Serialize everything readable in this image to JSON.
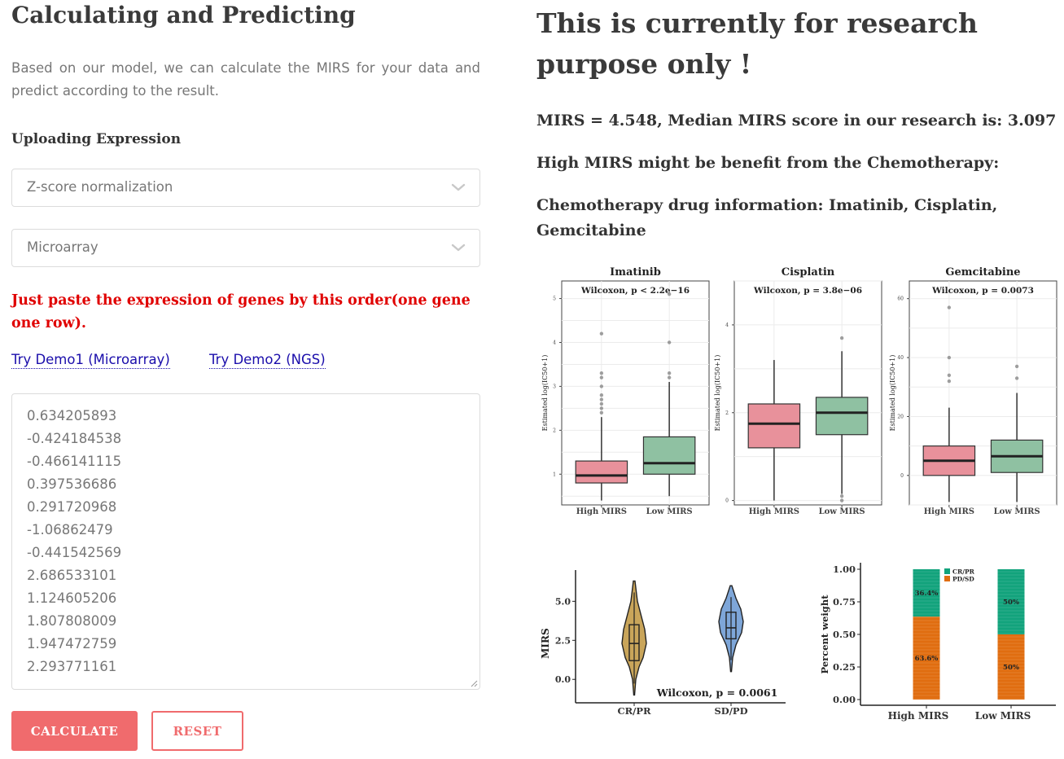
{
  "left": {
    "title": "Calculating and Predicting",
    "intro": "Based on our model, we can calculate the MIRS for your data and predict according to the result.",
    "upload_heading": "Uploading Expression",
    "normalization_select": "Z-score normalization",
    "platform_select": "Microarray",
    "instruction": "Just paste the expression of genes by this order(one gene one row).",
    "demo1_label": "Try Demo1 (Microarray)",
    "demo2_label": "Try Demo2 (NGS)",
    "expression_values": [
      "0.634205893",
      "-0.424184538",
      "-0.466141115",
      "0.397536686",
      "0.291720968",
      "-1.06862479",
      "-0.441542569",
      "2.686533101",
      "1.124605206",
      "1.807808009",
      "1.947472759",
      "2.293771161"
    ],
    "calculate_label": "CALCULATE",
    "reset_label": "RESET"
  },
  "right": {
    "research_note": "This is currently for research purpose only !",
    "mirs_result": "MIRS = 4.548, Median MIRS score in our research is: 3.097",
    "benefit": "High MIRS might be benefit from the Chemotherapy:",
    "drug_info": "Chemotherapy drug information: Imatinib, Cisplatin, Gemcitabine"
  },
  "colors": {
    "accent": "#f06b6d",
    "high_box": "#e8919b",
    "low_box": "#8fc1a2",
    "violin_cr": "#c9a55a",
    "violin_sd": "#7ea6d8",
    "crpr": "#12a37c",
    "pdsd": "#e06d10",
    "link": "#1a0dab",
    "instruction": "#e00000"
  },
  "chart_data": [
    {
      "type": "box",
      "title": "Imatinib",
      "annotation": "Wilcoxon, p < 2.2e−16",
      "ylabel": "Estimated log(IC50+1)",
      "categories": [
        "High MIRS",
        "Low MIRS"
      ],
      "y_ticks": [
        "1",
        "2",
        "3",
        "4",
        "5"
      ],
      "ylim": [
        0.3,
        5.4
      ],
      "boxes": [
        {
          "name": "High MIRS",
          "min": 0.4,
          "q1": 0.8,
          "median": 0.97,
          "q3": 1.3,
          "max": 2.3,
          "outliers": [
            2.4,
            2.5,
            2.6,
            2.7,
            2.8,
            3.0,
            3.2,
            3.3,
            4.2
          ]
        },
        {
          "name": "Low MIRS",
          "min": 0.5,
          "q1": 1.0,
          "median": 1.25,
          "q3": 1.85,
          "max": 3.1,
          "outliers": [
            3.2,
            3.3,
            4.0,
            5.1
          ]
        }
      ]
    },
    {
      "type": "box",
      "title": "Cisplatin",
      "annotation": "Wilcoxon, p = 3.8e−06",
      "ylabel": "Estimated log(IC50+1)",
      "categories": [
        "High MIRS",
        "Low MIRS"
      ],
      "y_ticks": [
        "0",
        "2",
        "4"
      ],
      "ylim": [
        -0.1,
        5.0
      ],
      "boxes": [
        {
          "name": "High MIRS",
          "min": 0.0,
          "q1": 1.2,
          "median": 1.75,
          "q3": 2.2,
          "max": 3.2,
          "outliers": []
        },
        {
          "name": "Low MIRS",
          "min": 0.15,
          "q1": 1.5,
          "median": 2.0,
          "q3": 2.35,
          "max": 3.4,
          "outliers": [
            0.0,
            0.1,
            3.7
          ]
        }
      ]
    },
    {
      "type": "box",
      "title": "Gemcitabine",
      "annotation": "Wilcoxon, p = 0.0073",
      "ylabel": "Estimated log(IC50+1)",
      "categories": [
        "High MIRS",
        "Low MIRS"
      ],
      "y_ticks": [
        "0",
        "20",
        "40",
        "60"
      ],
      "ylim": [
        -10,
        66
      ],
      "boxes": [
        {
          "name": "High MIRS",
          "min": -9,
          "q1": 0,
          "median": 5,
          "q3": 10,
          "max": 23,
          "outliers": [
            32,
            34,
            40,
            57
          ]
        },
        {
          "name": "Low MIRS",
          "min": -9,
          "q1": 1,
          "median": 6.5,
          "q3": 12,
          "max": 28,
          "outliers": [
            33,
            37
          ]
        }
      ]
    },
    {
      "type": "violin",
      "xlabel": "",
      "ylabel": "MIRS",
      "annotation": "Wilcoxon, p = 0.0061",
      "categories": [
        "CR/PR",
        "SD/PD"
      ],
      "y_ticks": [
        "0.0",
        "2.5",
        "5.0"
      ],
      "ylim": [
        -1.5,
        7.0
      ],
      "groups": [
        {
          "name": "CR/PR",
          "min": -1.0,
          "q1": 1.2,
          "median": 2.3,
          "q3": 3.5,
          "max": 6.3
        },
        {
          "name": "SD/PD",
          "min": 0.5,
          "q1": 2.6,
          "median": 3.3,
          "q3": 4.3,
          "max": 6.0
        }
      ]
    },
    {
      "type": "bar",
      "stacked": true,
      "ylabel": "Percent weight",
      "categories": [
        "High MIRS",
        "Low MIRS"
      ],
      "y_ticks": [
        "0.00",
        "0.25",
        "0.50",
        "0.75",
        "1.00"
      ],
      "ylim": [
        0,
        1.0
      ],
      "legend": "top-right",
      "series": [
        {
          "name": "CR/PR",
          "values": [
            0.364,
            0.5
          ],
          "labels": [
            "36.4%",
            "50%"
          ]
        },
        {
          "name": "PD/SD",
          "values": [
            0.636,
            0.5
          ],
          "labels": [
            "63.6%",
            "50%"
          ]
        }
      ]
    }
  ]
}
